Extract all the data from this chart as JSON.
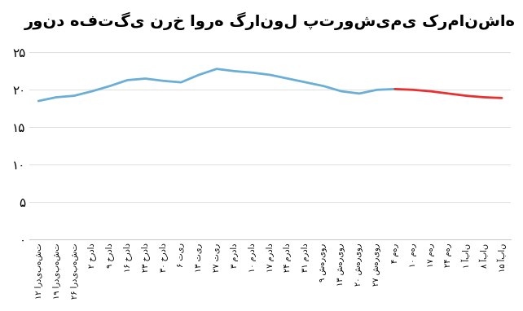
{
  "title": "روند هفتگی نرخ اوره گرانول پتروشیمی کرمانشاه",
  "x_labels": [
    "۱۲ اردیبهشت",
    "۱۹ اردیبهشت",
    "۲۶ اردیبهشت",
    "۲ خرداد",
    "۹ خرداد",
    "۱۶ خرداد",
    "۲۳ خرداد",
    "۳۰ خرداد",
    "۶ تیر",
    "۱۳ تیر",
    "۲۷ تیر",
    "۳ مرداد",
    "۱۰ مرداد",
    "۱۷ مرداد",
    "۲۴ مرداد",
    "۳۱ مرداد",
    "۹ شهریور",
    "۱۳ شهریور",
    "۲۰ شهریور",
    "۲۷ شهریور",
    "۴ مهر",
    "۱۰ مهر",
    "۱۷ مهر",
    "۲۴ مهر",
    "۱ آبان",
    "۸ آبان",
    "۱۵ آبان"
  ],
  "values": [
    18.5,
    19.0,
    19.2,
    19.8,
    20.5,
    21.3,
    21.5,
    21.2,
    21.0,
    22.0,
    22.8,
    22.5,
    22.3,
    22.0,
    21.5,
    21.0,
    20.5,
    19.8,
    19.5,
    20.0,
    20.1,
    20.0,
    19.8,
    19.5,
    19.2,
    19.0,
    18.9
  ],
  "blue_color": "#6baed6",
  "red_color": "#e83030",
  "blue_count": 20,
  "background_color": "#ffffff",
  "yticks": [
    0,
    5,
    10,
    15,
    20,
    25
  ],
  "ytick_labels": [
    "۰",
    "۵",
    "۱۰",
    "۱۵",
    "۲۰",
    "۲۵"
  ],
  "ylim": [
    0,
    27
  ],
  "title_fontsize": 14
}
